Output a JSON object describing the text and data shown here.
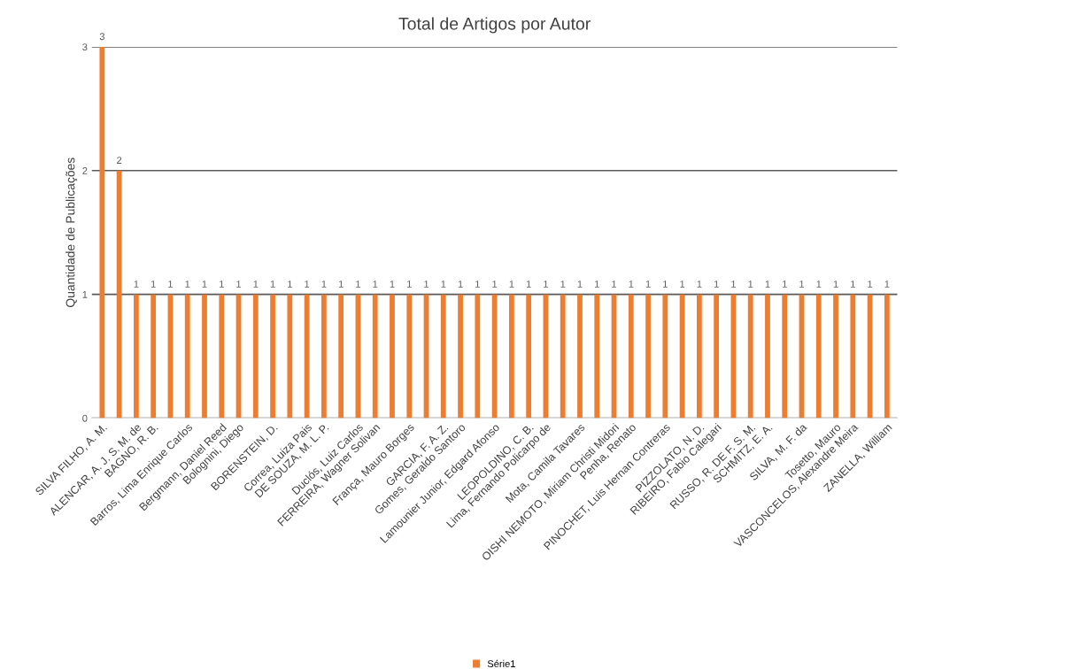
{
  "chart_data": {
    "type": "bar",
    "title": "Total de Artigos por Autor",
    "ylabel": "Quantidade de Publicações",
    "categories": [
      "SILVA FILHO, A. M.",
      null,
      "ALENCAR, A. J. S. M. de",
      "BAGNO, R. B.",
      null,
      "Barros, Lima Enrique Carlos",
      null,
      "Bergmann, Daniel Reed",
      "Bolognini, Diego",
      null,
      "BORENSTEIN, D.",
      null,
      "Correa, Luiza Pais",
      "DE SOUZA, M. L. P.",
      null,
      "Duclós, Luiz Carlos",
      "FERREIRA, Wagner Solivan",
      null,
      "França, Mauro Borges",
      null,
      "GARCIA, F. A. Z.",
      "Gomes, Geraldo Santoro",
      null,
      "Lamounier Junior, Edgard Afonso",
      null,
      "LEOPOLDINO, C. B.",
      "Lima, Fernando Policarpo de",
      null,
      "Mota, Camila Tavares",
      null,
      "OISHI NEMOTO, Miriam Christi Midori",
      "Penha, Renato",
      null,
      "PINOCHET, Luis Hernan Contreras",
      null,
      "PIZZOLATO, N. D.",
      "RIBEIRO, Fabio Calegari",
      null,
      "RUSSO, R. DE F. S. M.",
      "SCHMITZ, E. A.",
      null,
      "SILVA, M. F. da",
      null,
      "Tosetto, Mauro",
      "VASCONCELOS, Alexandre Meira",
      null,
      "ZANELLA, William"
    ],
    "series": [
      {
        "name": "Série1",
        "color": "#ed7d31",
        "values": [
          3,
          2,
          1,
          1,
          1,
          1,
          1,
          1,
          1,
          1,
          1,
          1,
          1,
          1,
          1,
          1,
          1,
          1,
          1,
          1,
          1,
          1,
          1,
          1,
          1,
          1,
          1,
          1,
          1,
          1,
          1,
          1,
          1,
          1,
          1,
          1,
          1,
          1,
          1,
          1,
          1,
          1,
          1,
          1,
          1,
          1,
          1
        ]
      }
    ],
    "ylim": [
      0,
      3
    ],
    "yticks": [
      0,
      1,
      2,
      3
    ],
    "grid": "y",
    "legend": "bottom",
    "data_labels": true
  }
}
